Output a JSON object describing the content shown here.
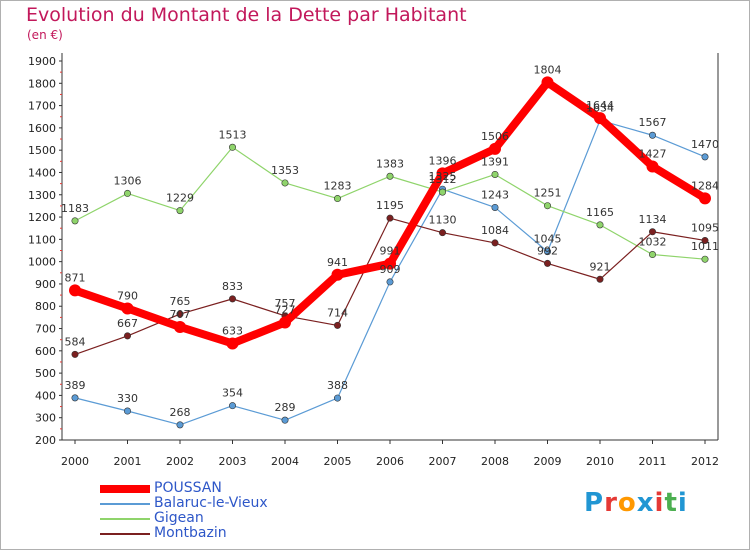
{
  "title": "Evolution du Montant de la Dette par Habitant",
  "unit": "(en €)",
  "logo": {
    "text": "Proxiti",
    "letters": [
      "P",
      "r",
      "o",
      "x",
      "i",
      "t",
      "i"
    ],
    "colors": [
      "#2196d3",
      "#e53935",
      "#ff9800",
      "#2196d3",
      "#e53935",
      "#4caf50",
      "#2196d3"
    ]
  },
  "chart_data": {
    "type": "line",
    "title": "Evolution du Montant de la Dette par Habitant",
    "subtitle": "(en €)",
    "categories": [
      "2000",
      "2001",
      "2002",
      "2003",
      "2004",
      "2005",
      "2006",
      "2007",
      "2008",
      "2009",
      "2010",
      "2011",
      "2012"
    ],
    "yticks": [
      200,
      300,
      400,
      500,
      600,
      700,
      800,
      900,
      1000,
      1100,
      1200,
      1300,
      1400,
      1500,
      1600,
      1700,
      1800,
      1900
    ],
    "ylim": [
      200,
      1900
    ],
    "grid": false,
    "legend_position": "bottom-left",
    "series": [
      {
        "name": "POUSSAN",
        "color": "#ff0000",
        "width": 8,
        "marker": 6,
        "values": [
          871,
          790,
          707,
          633,
          727,
          941,
          991,
          1396,
          1506,
          1804,
          1644,
          1427,
          1284
        ]
      },
      {
        "name": "Balaruc-le-Vieux",
        "color": "#5b9bd5",
        "width": 1.2,
        "marker": 3.2,
        "values": [
          389,
          330,
          268,
          354,
          289,
          388,
          909,
          1325,
          1243,
          1045,
          1634,
          1567,
          1470
        ]
      },
      {
        "name": "Gigean",
        "color": "#8fd46b",
        "width": 1.2,
        "marker": 3.2,
        "values": [
          1183,
          1306,
          1229,
          1513,
          1353,
          1283,
          1383,
          1312,
          1391,
          1251,
          1165,
          1032,
          1011
        ]
      },
      {
        "name": "Montbazin",
        "color": "#7b2020",
        "width": 1.2,
        "marker": 3.2,
        "values": [
          584,
          667,
          765,
          833,
          757,
          714,
          1195,
          1130,
          1084,
          992,
          921,
          1134,
          1095
        ]
      }
    ]
  }
}
